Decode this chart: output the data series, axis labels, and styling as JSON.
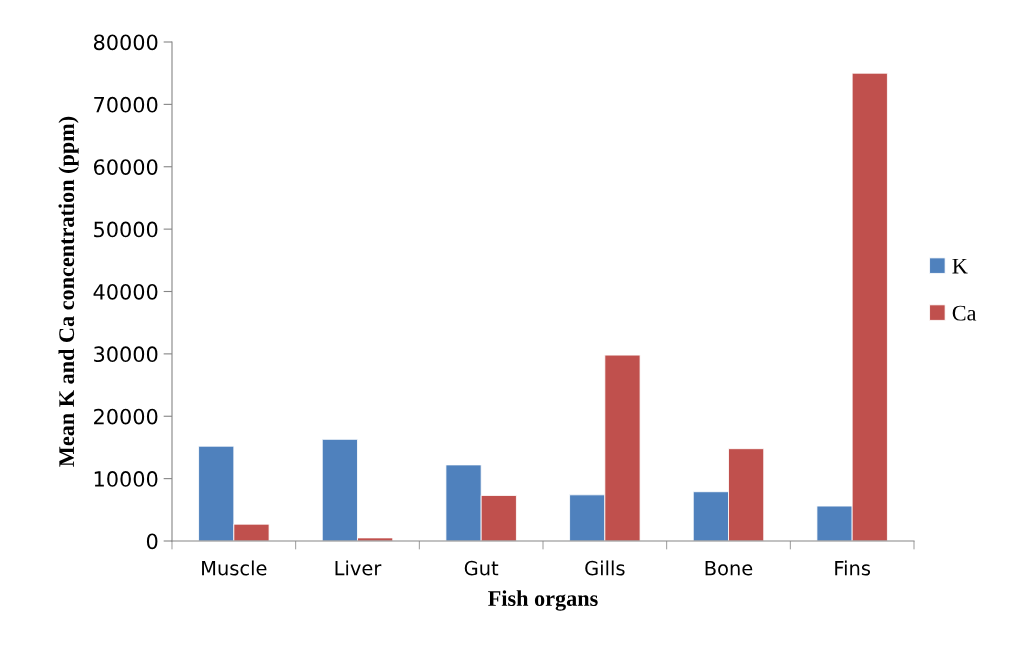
{
  "chart_data": {
    "type": "bar",
    "xlabel": "Fish organs",
    "ylabel": "Mean K and Ca concentration (ppm)",
    "categories": [
      "Muscle",
      "Liver",
      "Gut",
      "Gills",
      "Bone",
      "Fins"
    ],
    "series": [
      {
        "name": "K",
        "color": "#4f81bd",
        "values": [
          15200,
          16300,
          12200,
          7400,
          7900,
          5600
        ]
      },
      {
        "name": "Ca",
        "color": "#c0504d",
        "values": [
          2700,
          500,
          7300,
          29800,
          14800,
          75000
        ]
      }
    ],
    "ylim": [
      0,
      80000
    ],
    "yticks": [
      0,
      10000,
      20000,
      30000,
      40000,
      50000,
      60000,
      70000,
      80000
    ],
    "grid": false,
    "legend": "right"
  }
}
